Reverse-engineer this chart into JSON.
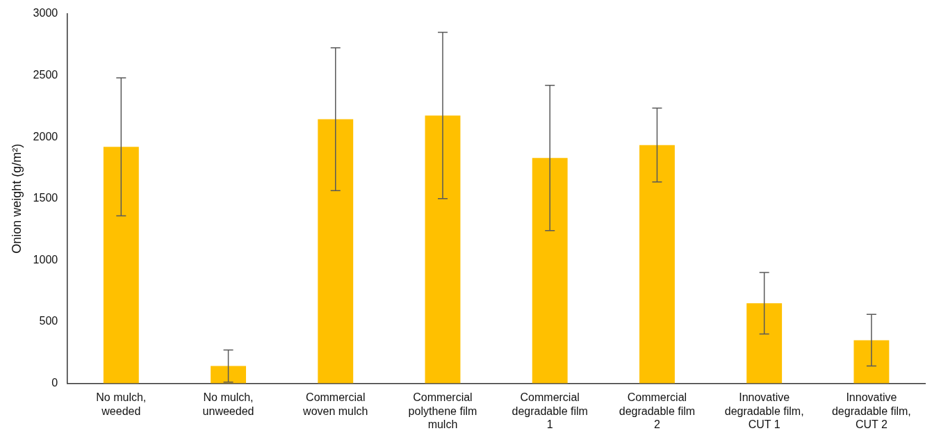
{
  "chart_data": {
    "type": "bar",
    "ylabel": "Onion weight (g/m²)",
    "categories": [
      "No mulch, weeded",
      "No mulch, unweeded",
      "Commercial woven mulch",
      "Commercial polythene film mulch",
      "Commercial degradable film 1",
      "Commercial degradable film 2",
      "Innovative degradable film, CUT 1",
      "Innovative degradable film, CUT 2"
    ],
    "values": [
      1920,
      140,
      2145,
      2175,
      1830,
      1935,
      650,
      350
    ],
    "errors": [
      560,
      130,
      580,
      675,
      590,
      300,
      250,
      210
    ],
    "color": "#ffc000",
    "ylim": [
      0,
      3000
    ],
    "yticks": [
      0,
      500,
      1000,
      1500,
      2000,
      2500,
      3000
    ],
    "grid": false,
    "legend": false
  }
}
